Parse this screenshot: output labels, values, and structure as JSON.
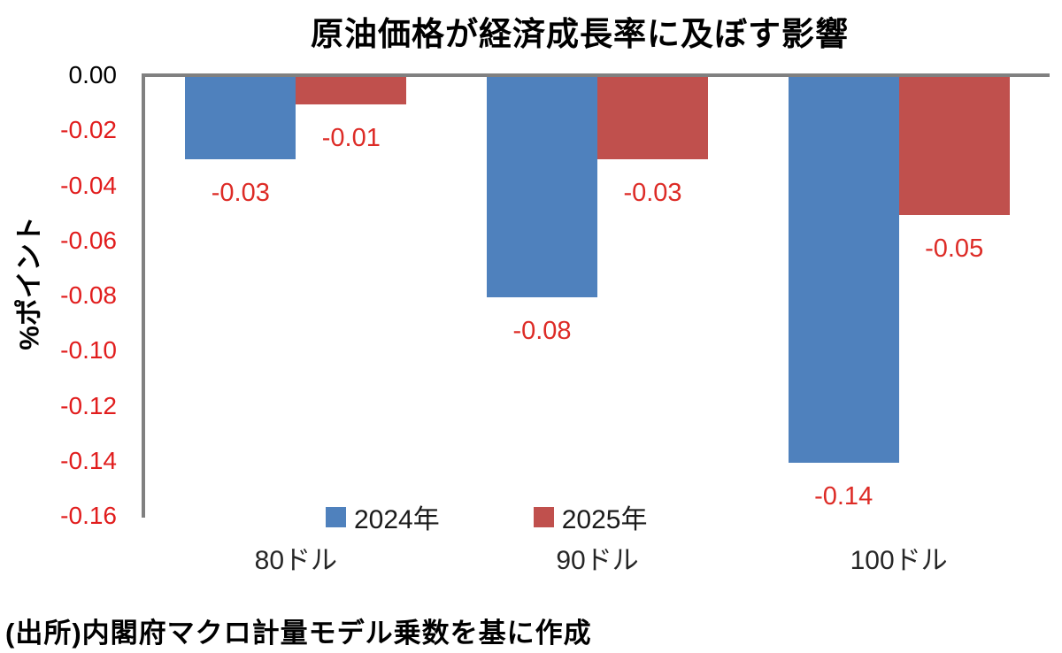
{
  "chart_data": {
    "type": "bar",
    "title": "原油価格が経済成長率に及ぼす影響",
    "ylabel": "%ポイント",
    "xlabel": "",
    "categories": [
      "80ドル",
      "90ドル",
      "100ドル"
    ],
    "series": [
      {
        "name": "2024年",
        "color": "#4f81bd",
        "values": [
          -0.03,
          -0.08,
          -0.14
        ],
        "data_labels": [
          "-0.03",
          "-0.08",
          "-0.14"
        ]
      },
      {
        "name": "2025年",
        "color": "#c0504d",
        "values": [
          -0.01,
          -0.03,
          -0.05
        ],
        "data_labels": [
          "-0.01",
          "-0.03",
          "-0.05"
        ]
      }
    ],
    "ylim": [
      -0.16,
      0
    ],
    "ytick_labels": [
      "0.00",
      "-0.02",
      "-0.04",
      "-0.06",
      "-0.08",
      "-0.10",
      "-0.12",
      "-0.14",
      "-0.16"
    ],
    "grid": false,
    "legend_position": "bottom-center",
    "colors": {
      "axis_line": "#808080",
      "ytick_zero": "#000000",
      "ytick_negative": "#e11d1d",
      "data_label": "#dd2b26"
    }
  },
  "source_note": "(出所)内閣府マクロ計量モデル乗数を基に作成"
}
